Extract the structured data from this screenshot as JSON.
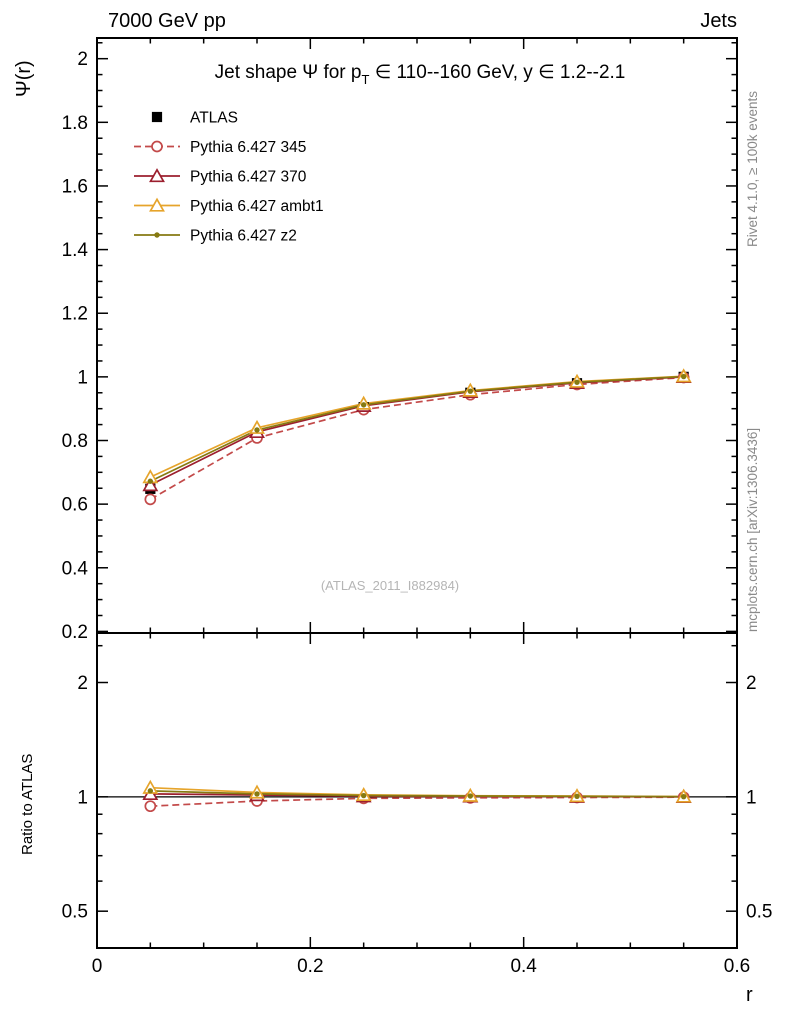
{
  "header": {
    "left_label": "7000 GeV pp",
    "right_label": "Jets"
  },
  "side_notes": {
    "rivet": "Rivet 4.1.0, ≥ 100k events",
    "mcplots": "mcplots.cern.ch [arXiv:1306.3436]"
  },
  "watermark": "(ATLAS_2011_I882984)",
  "chart_data": {
    "type": "line",
    "title": "Jet shape Ψ for p_T ∈ 110--160 GeV, y ∈ 1.2--2.1",
    "title_parts": {
      "pre": "Jet shape Ψ for p",
      "sub": "T",
      "post": " ∈ 110--160 GeV, y ∈ 1.2--2.1"
    },
    "xlabel": "r",
    "ylabel": "Ψ(r)",
    "ratio_ylabel": "Ratio to ATLAS",
    "x": [
      0.05,
      0.15,
      0.25,
      0.35,
      0.45,
      0.55
    ],
    "xlim": [
      0,
      0.6
    ],
    "main_ylim": [
      0.195,
      2.065
    ],
    "ratio_ylim": [
      0.4,
      2.7
    ],
    "ratio_yscale": "log",
    "x_major_ticks": [
      0,
      0.2,
      0.4,
      0.6
    ],
    "x_tick_labels": [
      "0",
      "0.2",
      "0.4",
      "0.6"
    ],
    "x_minor_step": 0.05,
    "main_y_major_ticks": [
      0.2,
      0.4,
      0.6,
      0.8,
      1,
      1.2,
      1.4,
      1.6,
      1.8,
      2
    ],
    "main_y_tick_labels": [
      "0.2",
      "0.4",
      "0.6",
      "0.8",
      "1",
      "1.2",
      "1.4",
      "1.6",
      "1.8",
      "2"
    ],
    "main_y_minor_step": 0.05,
    "ratio_y_major_ticks": [
      0.5,
      1,
      2
    ],
    "ratio_y_tick_labels": [
      "0.5",
      "1",
      "2"
    ],
    "ratio_y_minor_ticks": [
      0.4,
      0.6,
      0.7,
      0.8,
      0.9,
      2.5
    ],
    "reference_line": 1,
    "legend_position": "top-left-inside",
    "grid": false,
    "series": [
      {
        "name": "ATLAS",
        "color": "#000000",
        "marker": "square",
        "line": "none",
        "values": [
          0.648,
          0.818,
          0.905,
          0.95,
          0.98,
          1.0
        ],
        "ratio": null
      },
      {
        "name": "Pythia 6.427 345",
        "color": "#c34a4a",
        "marker": "circle",
        "line": "dashed",
        "values": [
          0.615,
          0.808,
          0.897,
          0.944,
          0.976,
          0.998
        ],
        "ratio": [
          0.945,
          0.975,
          0.991,
          0.994,
          0.996,
          0.998
        ]
      },
      {
        "name": "Pythia 6.427 370",
        "color": "#9c1f2e",
        "marker": "triangle",
        "line": "solid",
        "values": [
          0.66,
          0.827,
          0.909,
          0.953,
          0.981,
          1.0
        ],
        "ratio": [
          1.018,
          1.011,
          1.004,
          1.003,
          1.001,
          1.0
        ]
      },
      {
        "name": "Pythia 6.427 ambt1",
        "color": "#e6a42b",
        "marker": "triangle",
        "line": "solid",
        "values": [
          0.685,
          0.84,
          0.916,
          0.957,
          0.985,
          1.002
        ],
        "ratio": [
          1.057,
          1.027,
          1.012,
          1.007,
          1.005,
          1.002
        ]
      },
      {
        "name": "Pythia 6.427 z2",
        "color": "#867a12",
        "marker": "dot",
        "line": "solid",
        "values": [
          0.672,
          0.833,
          0.912,
          0.955,
          0.983,
          1.001
        ],
        "ratio": [
          1.037,
          1.018,
          1.008,
          1.005,
          1.003,
          1.001
        ]
      }
    ]
  }
}
